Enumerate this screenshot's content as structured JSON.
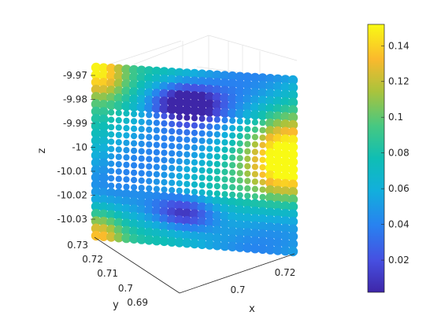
{
  "chart_data": {
    "type": "scatter",
    "subtype": "3d-scatter-surface",
    "title": "",
    "xlabel": "x",
    "ylabel": "y",
    "zlabel": "z",
    "grid": true,
    "x_ticks": [
      "0.7",
      "0.72"
    ],
    "y_ticks": [
      "0.73",
      "0.72",
      "0.71",
      "0.7",
      "0.69"
    ],
    "z_ticks": [
      "-9.97",
      "-9.98",
      "-9.99",
      "-10",
      "-10.01",
      "-10.02",
      "-10.03"
    ],
    "xlim": [
      0.69,
      0.725
    ],
    "ylim": [
      0.685,
      0.73
    ],
    "zlim": [
      -10.035,
      -9.965
    ],
    "colorbar": {
      "ticks": [
        "0.02",
        "0.04",
        "0.06",
        "0.08",
        "0.1",
        "0.12",
        "0.14"
      ],
      "range": [
        0.002,
        0.152
      ],
      "colormap": "parula"
    },
    "surface": {
      "description_cols": [
        "left-edge",
        "mid",
        "right-edge"
      ],
      "value_corners": {
        "top_left": 0.14,
        "bottom_left": 0.13,
        "right_middle": 0.15
      },
      "value_minima": [
        {
          "row_fraction": 0.18,
          "col_fraction": 0.45,
          "value": 0.005
        },
        {
          "row_fraction": 0.83,
          "col_fraction": 0.45,
          "value": 0.005
        }
      ],
      "value_center": 0.05
    }
  }
}
